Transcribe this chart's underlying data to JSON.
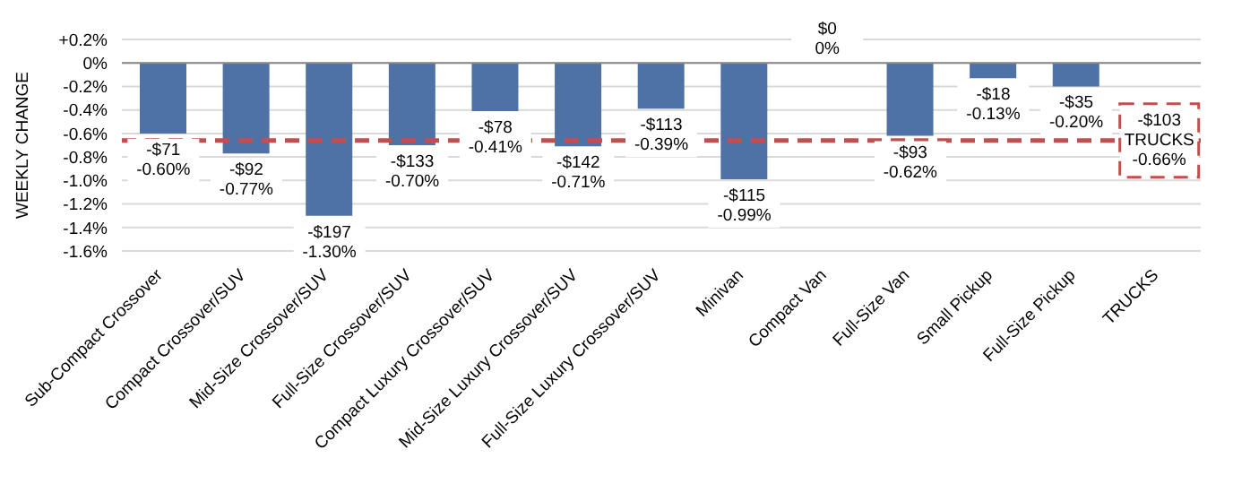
{
  "chart_data": {
    "type": "bar",
    "ylabel": "WEEKLY CHANGE",
    "categories": [
      "Sub-Compact Crossover",
      "Compact Crossover/SUV",
      "Mid-Size Crossover/SUV",
      "Full-Size Crossover/SUV",
      "Compact Luxury Crossover/SUV",
      "Mid-Size Luxury Crossover/SUV",
      "Full-Size Luxury Crossover/SUV",
      "Minivan",
      "Compact Van",
      "Full-Size Van",
      "Small Pickup",
      "Full-Size Pickup",
      "TRUCKS"
    ],
    "values": [
      -0.6,
      -0.77,
      -1.3,
      -0.7,
      -0.41,
      -0.71,
      -0.39,
      -0.99,
      0,
      -0.62,
      -0.13,
      -0.2,
      null
    ],
    "value_labels": [
      "-$71\n-0.60%",
      "-$92\n-0.77%",
      "-$197\n-1.30%",
      "-$133\n-0.70%",
      "-$78\n-0.41%",
      "-$142\n-0.71%",
      "-$113\n-0.39%",
      "-$115\n-0.99%",
      "$0\n0%",
      "-$93\n-0.62%",
      "-$18\n-0.13%",
      "-$35\n-0.20%",
      null
    ],
    "color": "#4f72a6",
    "ylim": [
      -1.6,
      0.2
    ],
    "yticks": [
      {
        "value": 0.2,
        "label": "+0.2%"
      },
      {
        "value": 0,
        "label": "0%"
      },
      {
        "value": -0.2,
        "label": "-0.2%"
      },
      {
        "value": -0.4,
        "label": "-0.4%"
      },
      {
        "value": -0.6,
        "label": "-0.6%"
      },
      {
        "value": -0.8,
        "label": "-0.8%"
      },
      {
        "value": -1.0,
        "label": "-1.0%"
      },
      {
        "value": -1.2,
        "label": "-1.2%"
      },
      {
        "value": -1.4,
        "label": "-1.4%"
      },
      {
        "value": -1.6,
        "label": "-1.6%"
      }
    ],
    "grid": "y",
    "legend": false,
    "ref_lines": [
      {
        "axis": "y",
        "value": -0.66,
        "label": "-$103\nTRUCKS\n-0.66%",
        "color": "#c0504d",
        "line_style": "dashed"
      }
    ]
  }
}
